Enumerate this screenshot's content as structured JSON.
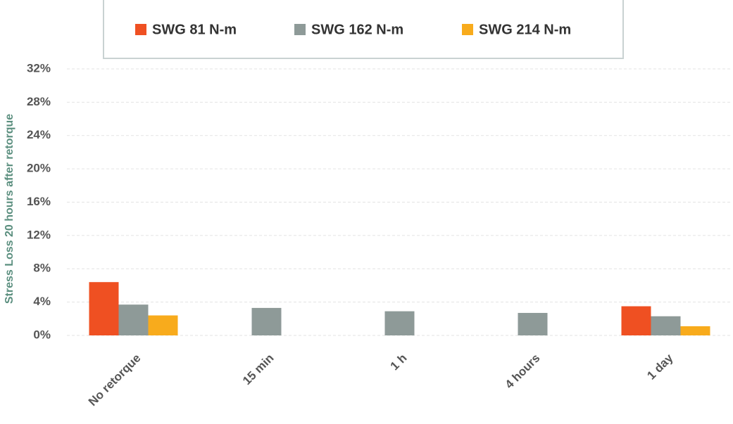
{
  "chart_data": {
    "type": "bar",
    "y_label": "Stress Loss 20 hours after retorque",
    "categories": [
      "No retorque",
      "15 min",
      "1 h",
      "4 hours",
      "1 day"
    ],
    "series": [
      {
        "name": "SWG 81 N-m",
        "color": "#ef5022",
        "values": [
          6.4,
          null,
          null,
          null,
          3.5
        ]
      },
      {
        "name": "SWG 162 N-m",
        "color": "#8e9a98",
        "values": [
          3.7,
          3.3,
          2.9,
          2.7,
          2.3
        ]
      },
      {
        "name": "SWG 214 N-m",
        "color": "#f8ab1c",
        "values": [
          2.4,
          null,
          null,
          null,
          1.1
        ]
      }
    ],
    "ylim": [
      0,
      32
    ],
    "yticks": [
      {
        "value": 0,
        "label": "0%"
      },
      {
        "value": 4,
        "label": "4%"
      },
      {
        "value": 8,
        "label": "8%"
      },
      {
        "value": 12,
        "label": "12%"
      },
      {
        "value": 16,
        "label": "16%"
      },
      {
        "value": 20,
        "label": "20%"
      },
      {
        "value": 24,
        "label": "24%"
      },
      {
        "value": 28,
        "label": "28%"
      },
      {
        "value": 32,
        "label": "32%"
      }
    ],
    "grid": true,
    "legend": "top"
  }
}
